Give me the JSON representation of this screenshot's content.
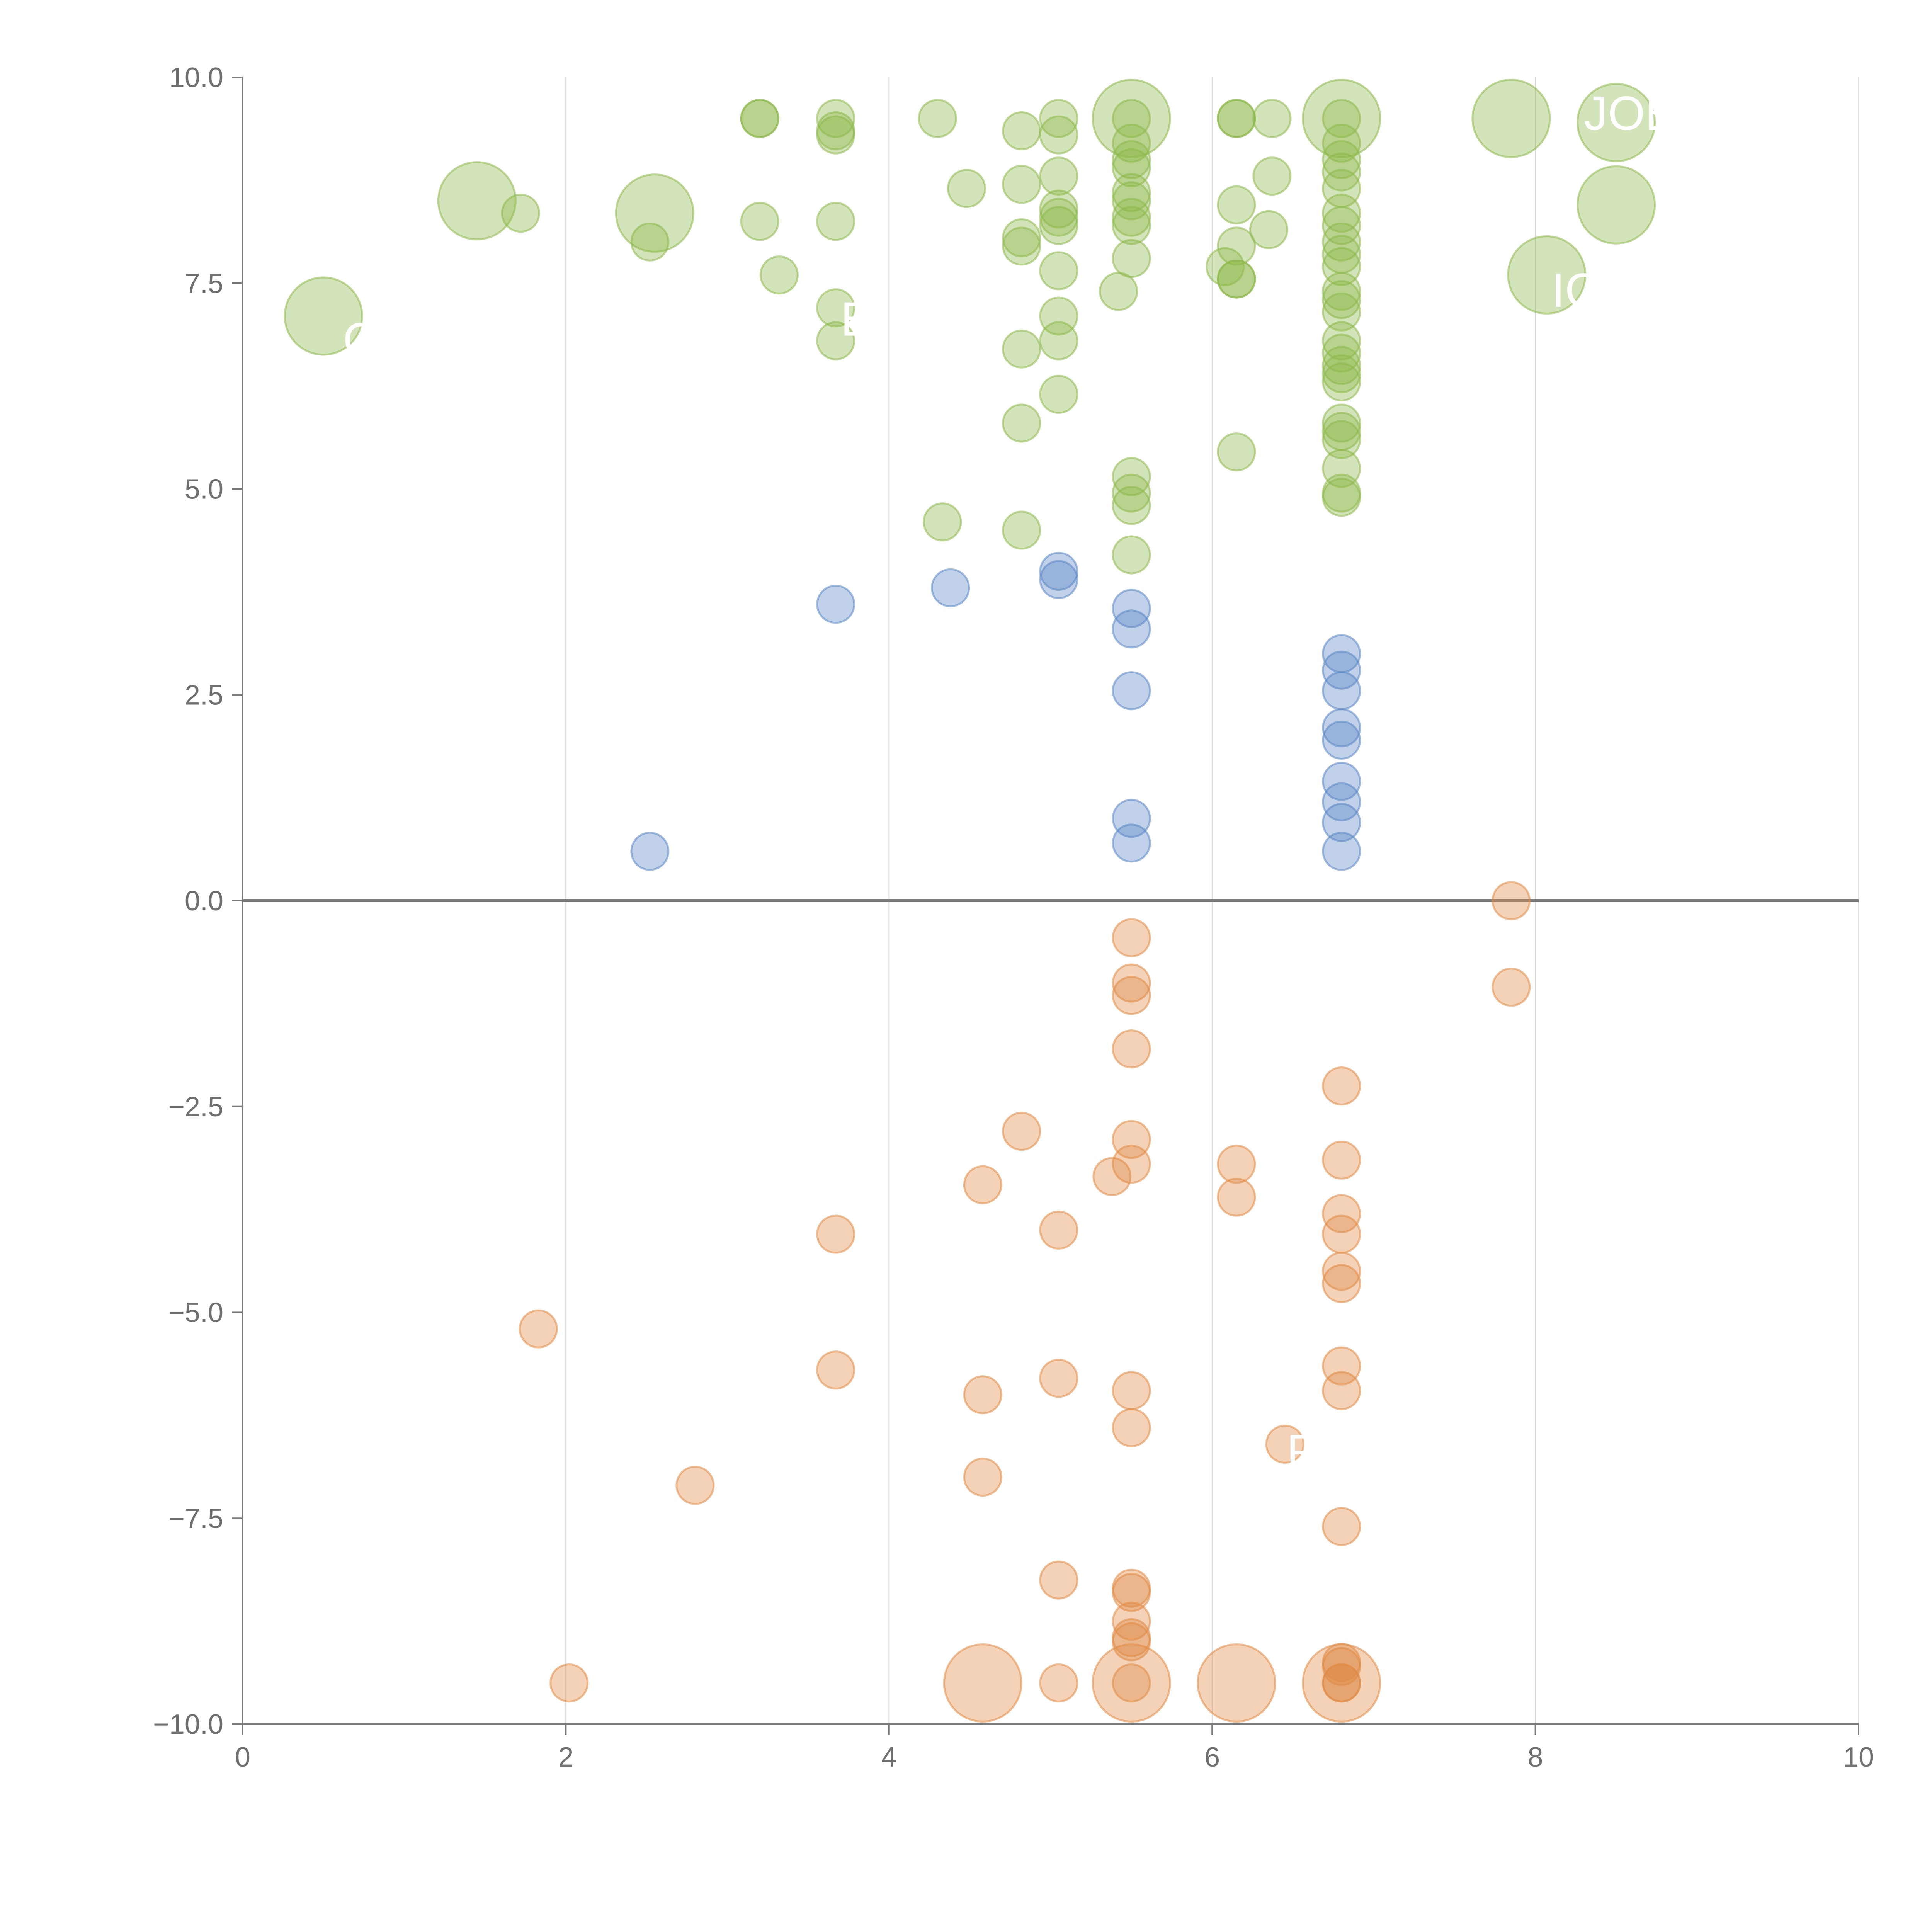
{
  "chart_data": {
    "type": "scatter",
    "title": "",
    "xlabel": "",
    "ylabel": "",
    "xlim": [
      0,
      10
    ],
    "ylim": [
      -10,
      10
    ],
    "x_ticks": [
      0,
      2,
      4,
      6,
      8,
      10
    ],
    "y_ticks": [
      10.0,
      7.5,
      5.0,
      2.5,
      0.0,
      -2.5,
      -5.0,
      -7.5,
      -10.0
    ],
    "x_tick_labels": [
      "0",
      "2",
      "4",
      "6",
      "8",
      "10"
    ],
    "y_tick_labels": [
      "10.0",
      "7.5",
      "5.0",
      "2.5",
      "0.0",
      "−2.5",
      "−5.0",
      "−7.5",
      "−10.0"
    ],
    "grid": "vertical",
    "zero_line": true,
    "colors": {
      "positive": "#8db84a",
      "neutral": "#5a86c5",
      "negative": "#e08a44",
      "axis": "#7a7a7a",
      "grid": "#dddddd",
      "label": "#ffffff"
    },
    "series": [
      {
        "name": "positive",
        "color": "#8db84a",
        "points": [
          {
            "x": 0.5,
            "y": 7.1,
            "size": 2.2
          },
          {
            "x": 1.45,
            "y": 8.5,
            "size": 2.2
          },
          {
            "x": 1.72,
            "y": 8.35,
            "size": 1
          },
          {
            "x": 2.55,
            "y": 8.35,
            "size": 2.2
          },
          {
            "x": 2.52,
            "y": 8.0,
            "size": 1
          },
          {
            "x": 3.2,
            "y": 9.5,
            "size": 1
          },
          {
            "x": 3.2,
            "y": 9.5,
            "size": 1
          },
          {
            "x": 3.2,
            "y": 8.25,
            "size": 1
          },
          {
            "x": 3.32,
            "y": 7.6,
            "size": 1
          },
          {
            "x": 3.67,
            "y": 9.5,
            "size": 1
          },
          {
            "x": 3.67,
            "y": 9.3,
            "size": 1
          },
          {
            "x": 3.67,
            "y": 9.35,
            "size": 1
          },
          {
            "x": 3.67,
            "y": 8.25,
            "size": 1
          },
          {
            "x": 3.67,
            "y": 7.2,
            "size": 1
          },
          {
            "x": 3.67,
            "y": 6.8,
            "size": 1
          },
          {
            "x": 4.3,
            "y": 9.5,
            "size": 1
          },
          {
            "x": 4.48,
            "y": 8.65,
            "size": 1
          },
          {
            "x": 4.33,
            "y": 4.6,
            "size": 1
          },
          {
            "x": 4.82,
            "y": 9.35,
            "size": 1
          },
          {
            "x": 4.82,
            "y": 8.7,
            "size": 1
          },
          {
            "x": 4.82,
            "y": 8.05,
            "size": 1
          },
          {
            "x": 4.82,
            "y": 7.95,
            "size": 1
          },
          {
            "x": 4.82,
            "y": 6.7,
            "size": 1
          },
          {
            "x": 4.82,
            "y": 5.8,
            "size": 1
          },
          {
            "x": 4.82,
            "y": 4.5,
            "size": 1
          },
          {
            "x": 5.05,
            "y": 9.5,
            "size": 1
          },
          {
            "x": 5.05,
            "y": 9.3,
            "size": 1
          },
          {
            "x": 5.05,
            "y": 8.8,
            "size": 1
          },
          {
            "x": 5.05,
            "y": 8.4,
            "size": 1
          },
          {
            "x": 5.05,
            "y": 8.3,
            "size": 1
          },
          {
            "x": 5.05,
            "y": 8.2,
            "size": 1
          },
          {
            "x": 5.05,
            "y": 7.65,
            "size": 1
          },
          {
            "x": 5.05,
            "y": 7.1,
            "size": 1
          },
          {
            "x": 5.05,
            "y": 6.8,
            "size": 1
          },
          {
            "x": 5.05,
            "y": 6.15,
            "size": 1
          },
          {
            "x": 5.5,
            "y": 9.5,
            "size": 2.2
          },
          {
            "x": 5.5,
            "y": 9.5,
            "size": 1
          },
          {
            "x": 5.5,
            "y": 9.2,
            "size": 1
          },
          {
            "x": 5.5,
            "y": 9.0,
            "size": 1
          },
          {
            "x": 5.5,
            "y": 8.9,
            "size": 1
          },
          {
            "x": 5.5,
            "y": 8.6,
            "size": 1
          },
          {
            "x": 5.5,
            "y": 8.5,
            "size": 1
          },
          {
            "x": 5.5,
            "y": 8.3,
            "size": 1
          },
          {
            "x": 5.5,
            "y": 8.2,
            "size": 1
          },
          {
            "x": 5.5,
            "y": 7.8,
            "size": 1
          },
          {
            "x": 5.42,
            "y": 7.4,
            "size": 1
          },
          {
            "x": 5.5,
            "y": 5.15,
            "size": 1
          },
          {
            "x": 5.5,
            "y": 4.95,
            "size": 1
          },
          {
            "x": 5.5,
            "y": 4.8,
            "size": 1
          },
          {
            "x": 5.5,
            "y": 4.2,
            "size": 1
          },
          {
            "x": 6.15,
            "y": 9.5,
            "size": 1
          },
          {
            "x": 6.15,
            "y": 9.5,
            "size": 1
          },
          {
            "x": 6.15,
            "y": 8.45,
            "size": 1
          },
          {
            "x": 6.15,
            "y": 7.95,
            "size": 1
          },
          {
            "x": 6.08,
            "y": 7.7,
            "size": 1
          },
          {
            "x": 6.15,
            "y": 7.55,
            "size": 1
          },
          {
            "x": 6.15,
            "y": 7.55,
            "size": 1
          },
          {
            "x": 6.15,
            "y": 5.45,
            "size": 1
          },
          {
            "x": 6.37,
            "y": 9.5,
            "size": 1
          },
          {
            "x": 6.37,
            "y": 8.8,
            "size": 1
          },
          {
            "x": 6.35,
            "y": 8.15,
            "size": 1
          },
          {
            "x": 6.8,
            "y": 9.5,
            "size": 2.2
          },
          {
            "x": 6.8,
            "y": 9.5,
            "size": 1
          },
          {
            "x": 6.8,
            "y": 9.2,
            "size": 1
          },
          {
            "x": 6.8,
            "y": 9.0,
            "size": 1
          },
          {
            "x": 6.8,
            "y": 8.85,
            "size": 1
          },
          {
            "x": 6.8,
            "y": 8.65,
            "size": 1
          },
          {
            "x": 6.8,
            "y": 8.35,
            "size": 1
          },
          {
            "x": 6.8,
            "y": 8.2,
            "size": 1
          },
          {
            "x": 6.8,
            "y": 8.0,
            "size": 1
          },
          {
            "x": 6.8,
            "y": 7.85,
            "size": 1
          },
          {
            "x": 6.8,
            "y": 7.7,
            "size": 1
          },
          {
            "x": 6.8,
            "y": 7.4,
            "size": 1
          },
          {
            "x": 6.8,
            "y": 7.3,
            "size": 1
          },
          {
            "x": 6.8,
            "y": 7.15,
            "size": 1
          },
          {
            "x": 6.8,
            "y": 6.8,
            "size": 1
          },
          {
            "x": 6.8,
            "y": 6.65,
            "size": 1
          },
          {
            "x": 6.8,
            "y": 6.5,
            "size": 1
          },
          {
            "x": 6.8,
            "y": 6.4,
            "size": 1
          },
          {
            "x": 6.8,
            "y": 6.3,
            "size": 1
          },
          {
            "x": 6.8,
            "y": 5.8,
            "size": 1
          },
          {
            "x": 6.8,
            "y": 5.7,
            "size": 1
          },
          {
            "x": 6.8,
            "y": 5.6,
            "size": 1
          },
          {
            "x": 6.8,
            "y": 5.25,
            "size": 1
          },
          {
            "x": 6.8,
            "y": 4.95,
            "size": 1
          },
          {
            "x": 6.8,
            "y": 4.9,
            "size": 1
          },
          {
            "x": 7.85,
            "y": 9.5,
            "size": 2.2
          },
          {
            "x": 8.07,
            "y": 7.6,
            "size": 2.2
          },
          {
            "x": 8.5,
            "y": 9.45,
            "size": 2.2
          },
          {
            "x": 8.5,
            "y": 8.45,
            "size": 2.2
          }
        ]
      },
      {
        "name": "neutral",
        "color": "#5a86c5",
        "points": [
          {
            "x": 2.52,
            "y": 0.6,
            "size": 1
          },
          {
            "x": 3.67,
            "y": 3.6,
            "size": 1
          },
          {
            "x": 4.38,
            "y": 3.8,
            "size": 1
          },
          {
            "x": 5.05,
            "y": 4.0,
            "size": 1
          },
          {
            "x": 5.05,
            "y": 3.9,
            "size": 1
          },
          {
            "x": 5.5,
            "y": 3.55,
            "size": 1
          },
          {
            "x": 5.5,
            "y": 3.3,
            "size": 1
          },
          {
            "x": 5.5,
            "y": 2.55,
            "size": 1
          },
          {
            "x": 5.5,
            "y": 1.0,
            "size": 1
          },
          {
            "x": 5.5,
            "y": 0.7,
            "size": 1
          },
          {
            "x": 6.8,
            "y": 3.0,
            "size": 1
          },
          {
            "x": 6.8,
            "y": 2.8,
            "size": 1
          },
          {
            "x": 6.8,
            "y": 2.55,
            "size": 1
          },
          {
            "x": 6.8,
            "y": 2.1,
            "size": 1
          },
          {
            "x": 6.8,
            "y": 1.95,
            "size": 1
          },
          {
            "x": 6.8,
            "y": 1.45,
            "size": 1
          },
          {
            "x": 6.8,
            "y": 1.2,
            "size": 1
          },
          {
            "x": 6.8,
            "y": 0.95,
            "size": 1
          },
          {
            "x": 6.8,
            "y": 0.6,
            "size": 1
          }
        ]
      },
      {
        "name": "negative",
        "color": "#e08a44",
        "points": [
          {
            "x": 1.83,
            "y": -5.2,
            "size": 1
          },
          {
            "x": 2.02,
            "y": -9.5,
            "size": 1
          },
          {
            "x": 2.8,
            "y": -7.1,
            "size": 1
          },
          {
            "x": 3.67,
            "y": -4.05,
            "size": 1
          },
          {
            "x": 3.67,
            "y": -5.7,
            "size": 1
          },
          {
            "x": 4.58,
            "y": -3.45,
            "size": 1
          },
          {
            "x": 4.58,
            "y": -6.0,
            "size": 1
          },
          {
            "x": 4.58,
            "y": -7.0,
            "size": 1
          },
          {
            "x": 4.58,
            "y": -9.5,
            "size": 2.2
          },
          {
            "x": 4.82,
            "y": -2.8,
            "size": 1
          },
          {
            "x": 5.05,
            "y": -4.0,
            "size": 1
          },
          {
            "x": 5.05,
            "y": -5.8,
            "size": 1
          },
          {
            "x": 5.05,
            "y": -8.25,
            "size": 1
          },
          {
            "x": 5.05,
            "y": -9.5,
            "size": 1
          },
          {
            "x": 5.38,
            "y": -3.35,
            "size": 1
          },
          {
            "x": 5.5,
            "y": -0.45,
            "size": 1
          },
          {
            "x": 5.5,
            "y": -1.0,
            "size": 1
          },
          {
            "x": 5.5,
            "y": -1.15,
            "size": 1
          },
          {
            "x": 5.5,
            "y": -1.8,
            "size": 1
          },
          {
            "x": 5.5,
            "y": -2.9,
            "size": 1
          },
          {
            "x": 5.5,
            "y": -3.2,
            "size": 1
          },
          {
            "x": 5.5,
            "y": -5.95,
            "size": 1
          },
          {
            "x": 5.5,
            "y": -6.4,
            "size": 1
          },
          {
            "x": 5.5,
            "y": -8.35,
            "size": 1
          },
          {
            "x": 5.5,
            "y": -8.4,
            "size": 1
          },
          {
            "x": 5.5,
            "y": -8.75,
            "size": 1
          },
          {
            "x": 5.5,
            "y": -8.95,
            "size": 1
          },
          {
            "x": 5.5,
            "y": -9.0,
            "size": 1
          },
          {
            "x": 5.5,
            "y": -9.5,
            "size": 2.2
          },
          {
            "x": 5.5,
            "y": -9.5,
            "size": 1
          },
          {
            "x": 6.15,
            "y": -3.2,
            "size": 1
          },
          {
            "x": 6.15,
            "y": -3.6,
            "size": 1
          },
          {
            "x": 6.15,
            "y": -9.5,
            "size": 2.2
          },
          {
            "x": 6.45,
            "y": -6.6,
            "size": 1
          },
          {
            "x": 6.8,
            "y": -2.25,
            "size": 1
          },
          {
            "x": 6.8,
            "y": -3.15,
            "size": 1
          },
          {
            "x": 6.8,
            "y": -3.8,
            "size": 1
          },
          {
            "x": 6.8,
            "y": -4.05,
            "size": 1
          },
          {
            "x": 6.8,
            "y": -4.5,
            "size": 1
          },
          {
            "x": 6.8,
            "y": -4.65,
            "size": 1
          },
          {
            "x": 6.8,
            "y": -5.65,
            "size": 1
          },
          {
            "x": 6.8,
            "y": -5.95,
            "size": 1
          },
          {
            "x": 6.8,
            "y": -7.6,
            "size": 1
          },
          {
            "x": 6.8,
            "y": -9.25,
            "size": 1
          },
          {
            "x": 6.8,
            "y": -9.3,
            "size": 1
          },
          {
            "x": 6.8,
            "y": -9.5,
            "size": 2.2
          },
          {
            "x": 6.8,
            "y": -9.5,
            "size": 1
          },
          {
            "x": 6.8,
            "y": -9.5,
            "size": 1
          },
          {
            "x": 7.85,
            "y": 0.0,
            "size": 1
          },
          {
            "x": 7.85,
            "y": -1.05,
            "size": 1
          }
        ]
      }
    ],
    "annotations": [
      {
        "text": "C",
        "x": 0.62,
        "y": 6.8
      },
      {
        "text": "B",
        "x": 3.7,
        "y": 7.05
      },
      {
        "text": "R",
        "x": 6.46,
        "y": -6.7
      },
      {
        "text": "ICE",
        "x": 8.1,
        "y": 7.4
      },
      {
        "text": "JOE",
        "x": 8.3,
        "y": 9.55
      }
    ]
  }
}
